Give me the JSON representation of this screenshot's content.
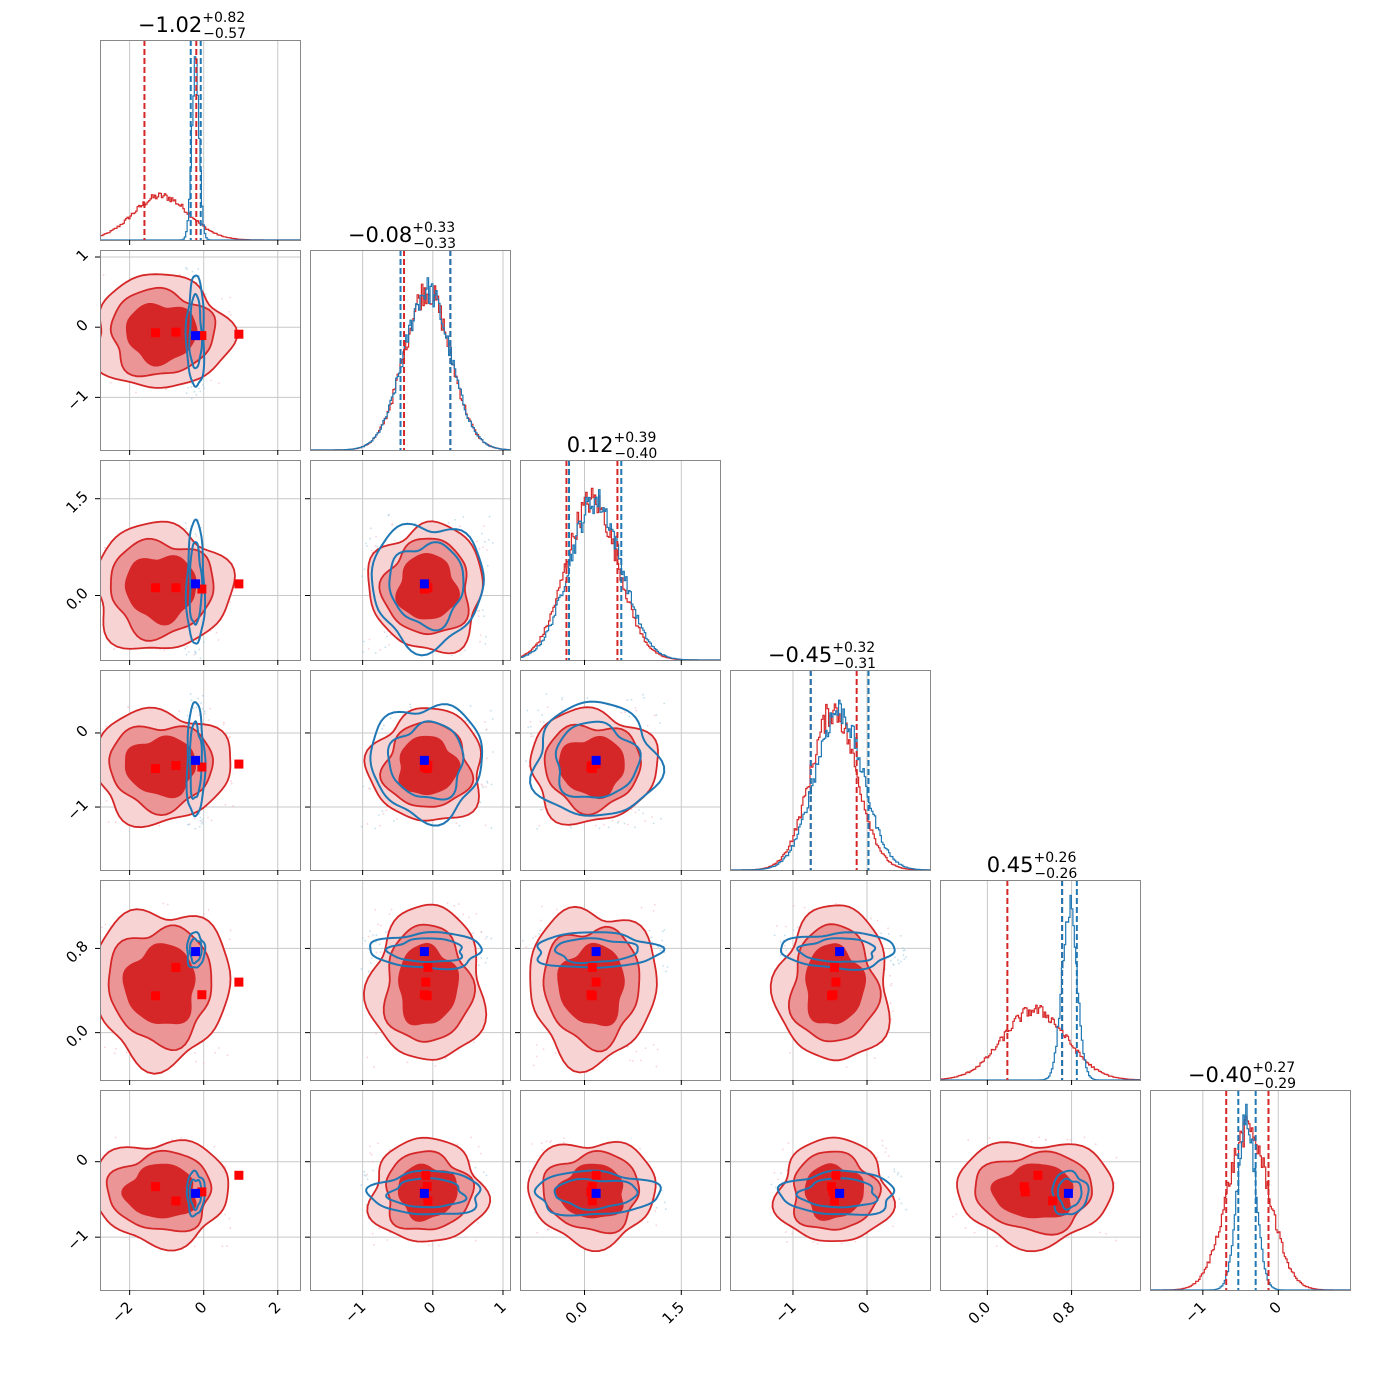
{
  "chart_data": {
    "type": "corner",
    "n_params": 6,
    "series": [
      {
        "name": "",
        "color": "#d62728"
      },
      {
        "name": "",
        "color": "#1f77b4"
      }
    ],
    "marker_colors": {
      "red": "#ff0000",
      "blue": "#0000ff"
    },
    "titles": [
      {
        "median": "−1.02",
        "plus": "+0.82",
        "minus": "−0.57"
      },
      {
        "median": "−0.08",
        "plus": "+0.33",
        "minus": "−0.33"
      },
      {
        "median": "0.12",
        "plus": "+0.39",
        "minus": "−0.40"
      },
      {
        "median": "−0.45",
        "plus": "+0.32",
        "minus": "−0.31"
      },
      {
        "median": "0.45",
        "plus": "+0.26",
        "minus": "−0.26"
      },
      {
        "median": "−0.40",
        "plus": "+0.27",
        "minus": "−0.29"
      }
    ],
    "params": [
      {
        "range": [
          -2.8,
          2.6
        ],
        "ticks": [
          -2,
          0,
          2
        ],
        "tick_labels": [
          "−2",
          "0",
          "2"
        ]
      },
      {
        "range": [
          -1.75,
          1.1
        ],
        "ticks": [
          -1,
          0,
          1
        ],
        "tick_labels": [
          "−1",
          "0",
          "1"
        ]
      },
      {
        "range": [
          -1.0,
          2.1
        ],
        "ticks": [
          0.0,
          1.5
        ],
        "tick_labels": [
          "0.0",
          "1.5"
        ]
      },
      {
        "range": [
          -1.85,
          0.85
        ],
        "ticks": [
          -1,
          0
        ],
        "tick_labels": [
          "−1",
          "0"
        ]
      },
      {
        "range": [
          -0.45,
          1.45
        ],
        "ticks": [
          0.0,
          0.8
        ],
        "tick_labels": [
          "0.0",
          "0.8"
        ]
      },
      {
        "range": [
          -1.7,
          0.95
        ],
        "ticks": [
          -1,
          0
        ],
        "tick_labels": [
          "−1",
          "0"
        ]
      }
    ],
    "red": {
      "mean": [
        -1.15,
        -0.08,
        0.12,
        -0.45,
        0.45,
        -0.4
      ],
      "std": [
        0.75,
        0.33,
        0.4,
        0.31,
        0.3,
        0.28
      ],
      "quantiles": [
        [
          -1.6,
          -0.2
        ],
        [
          -0.41,
          0.25
        ],
        [
          -0.28,
          0.51
        ],
        [
          -0.76,
          -0.14
        ],
        [
          0.19,
          0.71
        ],
        [
          -0.69,
          -0.13
        ]
      ],
      "markers": [
        [
          -1.3,
          -0.08,
          0.12,
          -0.48,
          0.35,
          -0.33
        ],
        [
          -0.75,
          -0.07,
          0.12,
          -0.44,
          0.62,
          -0.52
        ],
        [
          -0.05,
          -0.12,
          0.1,
          -0.46,
          0.36,
          -0.4
        ],
        [
          0.95,
          -0.1,
          0.18,
          -0.42,
          0.48,
          -0.18
        ]
      ]
    },
    "blue": {
      "mean": [
        -0.22,
        -0.08,
        0.17,
        -0.38,
        0.78,
        -0.42
      ],
      "std": [
        0.1,
        0.33,
        0.4,
        0.32,
        0.07,
        0.12
      ],
      "quantiles": [
        [
          -0.35,
          -0.08
        ],
        [
          -0.46,
          0.25
        ],
        [
          -0.24,
          0.57
        ],
        [
          -0.76,
          0.02
        ],
        [
          0.71,
          0.85
        ],
        [
          -0.53,
          -0.3
        ]
      ],
      "markers": [
        [
          -0.22,
          -0.12,
          0.18,
          -0.37,
          0.77,
          -0.42
        ]
      ]
    }
  }
}
